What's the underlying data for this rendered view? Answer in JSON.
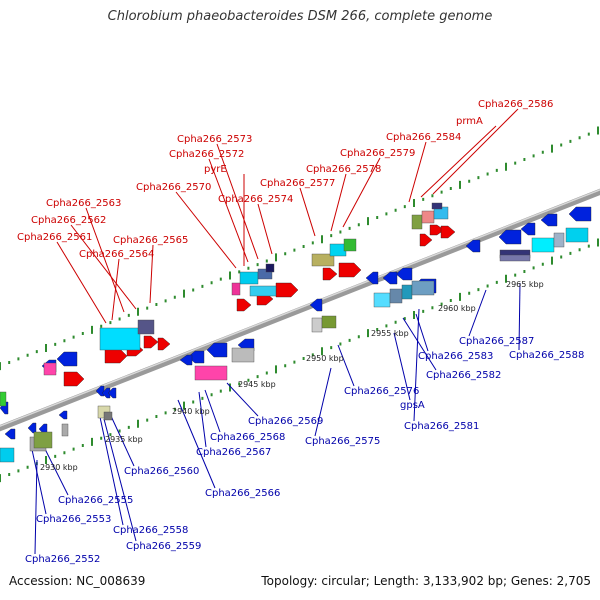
{
  "title": "Chlorobium phaeobacteroides DSM 266, complete genome",
  "footer": {
    "accession": "Accession: NC_008639",
    "summary": "Topology: circular; Length: 3,133,902 bp; Genes: 2,705"
  },
  "colors": {
    "top_label": "#cc0000",
    "bottom_label": "#0000aa",
    "backbone": "#9a9a9a",
    "tick": "#2e8b2e",
    "forward_arrow": "#ee0000",
    "reverse_arrow": "#0022dd"
  },
  "scale_labels": [
    {
      "id": "2930",
      "text": "2930 kbp"
    },
    {
      "id": "2935",
      "text": "2935 kbp"
    },
    {
      "id": "2940",
      "text": "2940 kbp"
    },
    {
      "id": "2945",
      "text": "2945 kbp"
    },
    {
      "id": "2950",
      "text": "2950 kbp"
    },
    {
      "id": "2955",
      "text": "2955 kbp"
    },
    {
      "id": "2960",
      "text": "2960 kbp"
    },
    {
      "id": "2965",
      "text": "2965 kbp"
    }
  ],
  "top_genes": [
    "Cpha266_2586",
    "prmA",
    "Cpha266_2584",
    "Cpha266_2579",
    "Cpha266_2578",
    "Cpha266_2577",
    "Cpha266_2574",
    "Cpha266_2573",
    "Cpha266_2572",
    "pyrE",
    "Cpha266_2570",
    "Cpha266_2563",
    "Cpha266_2562",
    "Cpha266_2561",
    "Cpha266_2565",
    "Cpha266_2564"
  ],
  "bottom_genes": [
    "Cpha266_2587",
    "Cpha266_2588",
    "Cpha266_2583",
    "Cpha266_2582",
    "Cpha266_2576",
    "gpsA",
    "Cpha266_2581",
    "Cpha266_2569",
    "Cpha266_2568",
    "Cpha266_2567",
    "Cpha266_2575",
    "Cpha266_2566",
    "Cpha266_2560",
    "Cpha266_2555",
    "Cpha266_2553",
    "Cpha266_2558",
    "Cpha266_2559",
    "Cpha266_2552"
  ]
}
